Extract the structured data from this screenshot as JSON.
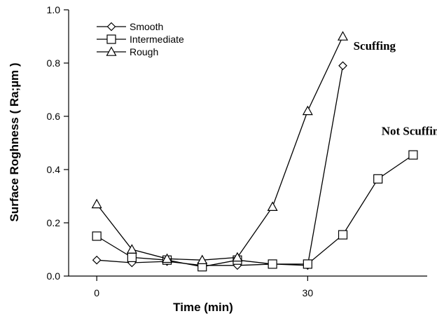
{
  "chart_data": {
    "type": "line",
    "title": "",
    "xlabel": "Time (min)",
    "ylabel": "Surface Roghness ( Ra;µm )",
    "xlim": [
      -4,
      47
    ],
    "ylim": [
      0,
      1.0
    ],
    "x_ticks": [
      0,
      30
    ],
    "x_tick_labels": [
      "0",
      "30"
    ],
    "y_ticks": [
      0,
      0.2,
      0.4,
      0.6,
      0.8,
      1.0
    ],
    "y_tick_labels": [
      "0.0",
      "0.2",
      "0.4",
      "0.6",
      "0.8",
      "1.0"
    ],
    "grid": false,
    "legend_position": "top-left",
    "series": [
      {
        "name": "Smooth",
        "marker": "diamond",
        "x": [
          0,
          5,
          10,
          15,
          20,
          25,
          30,
          35
        ],
        "y": [
          0.06,
          0.05,
          0.055,
          0.04,
          0.04,
          0.045,
          0.04,
          0.79
        ]
      },
      {
        "name": "Intermediate",
        "marker": "square",
        "x": [
          0,
          5,
          10,
          15,
          20,
          25,
          30,
          35,
          40,
          45
        ],
        "y": [
          0.15,
          0.07,
          0.06,
          0.035,
          0.06,
          0.045,
          0.045,
          0.155,
          0.365,
          0.455
        ]
      },
      {
        "name": "Rough",
        "marker": "triangle",
        "x": [
          0,
          5,
          10,
          15,
          20,
          25,
          30,
          35
        ],
        "y": [
          0.27,
          0.1,
          0.065,
          0.06,
          0.07,
          0.26,
          0.62,
          0.9
        ]
      }
    ],
    "annotations": [
      {
        "text": "Scuffing",
        "x": 36.5,
        "y": 0.85
      },
      {
        "text": "Not Scuffing",
        "x": 40.5,
        "y": 0.53
      }
    ]
  }
}
